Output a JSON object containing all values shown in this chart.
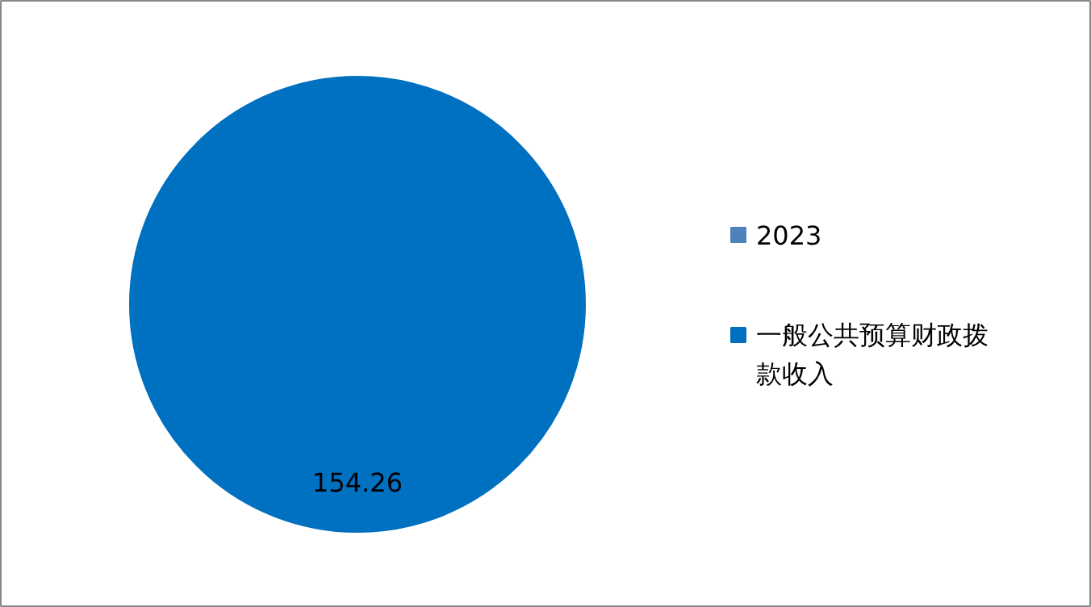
{
  "chart_data": {
    "type": "pie",
    "categories": [
      "2023",
      "一般公共预算财政拨款收入"
    ],
    "values": [
      null,
      154.26
    ],
    "colors": [
      "#4f81bd",
      "#0070c0"
    ],
    "data_labels": true,
    "legend": "right"
  }
}
